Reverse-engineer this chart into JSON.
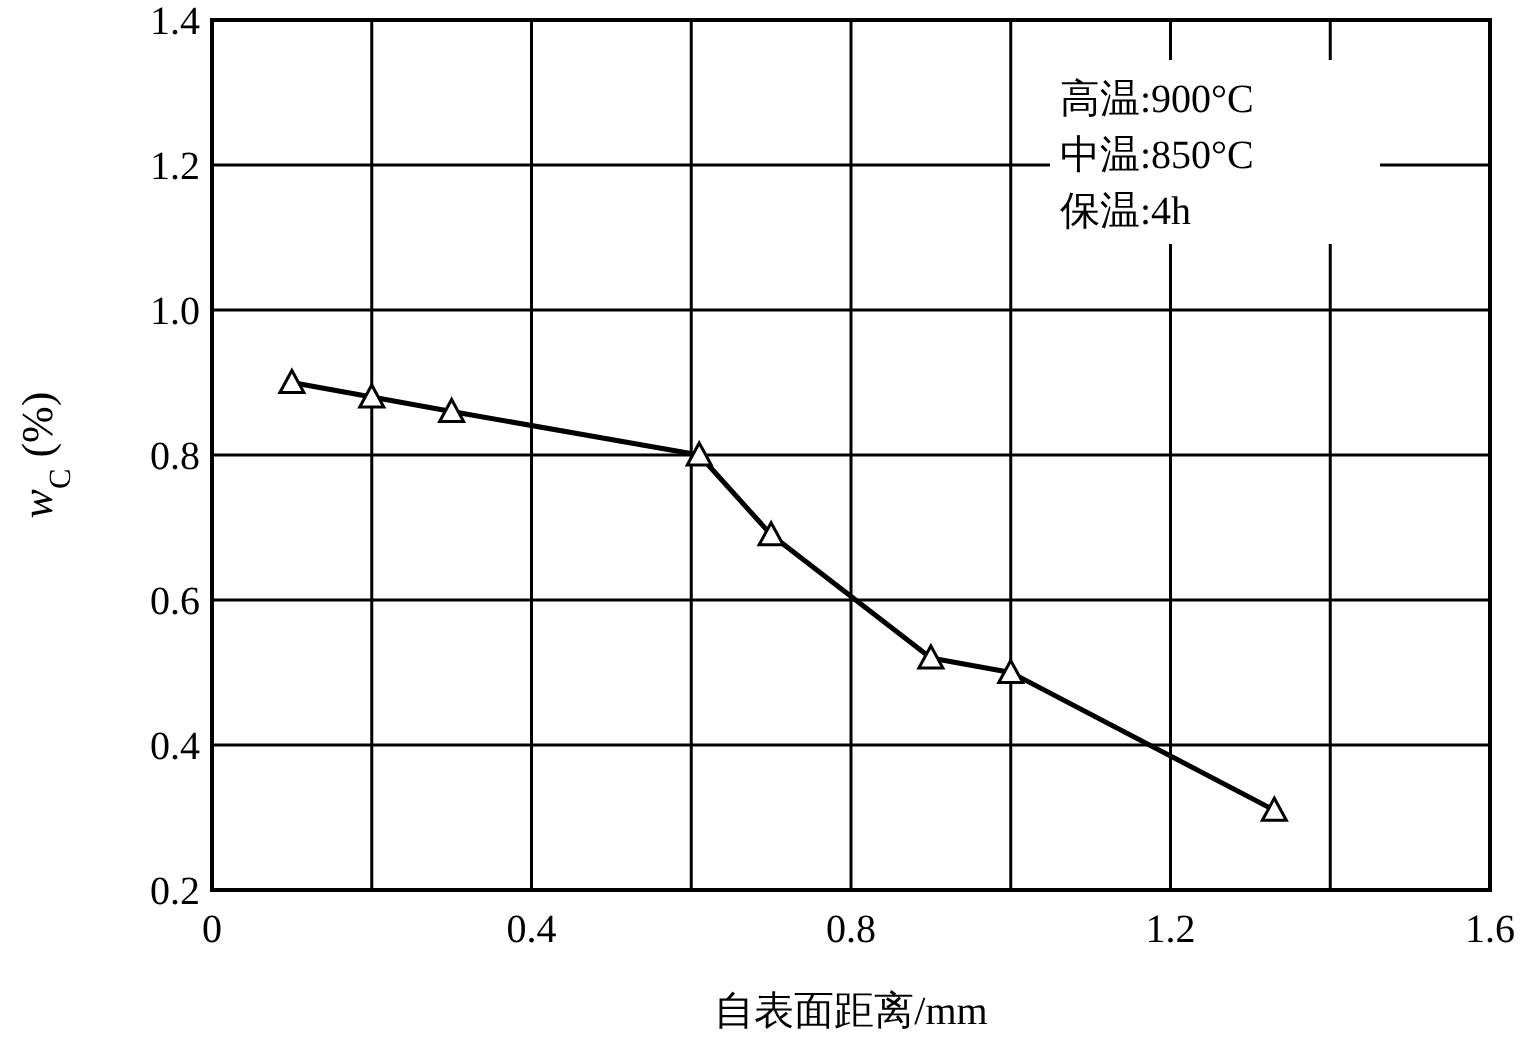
{
  "chart_data": {
    "type": "line",
    "xlabel": "自表面距离/mm",
    "ylabel": "*w*$_{C}$ (%)",
    "x": [
      0.1,
      0.2,
      0.3,
      0.61,
      0.7,
      0.9,
      1.0,
      1.33
    ],
    "values": [
      0.9,
      0.88,
      0.86,
      0.8,
      0.69,
      0.52,
      0.5,
      0.31
    ],
    "color": "#000000",
    "marker": "triangle",
    "line_style": "solid",
    "grid": true,
    "xlim": [
      0,
      1.6
    ],
    "ylim": [
      0.2,
      1.4
    ],
    "xticks": [
      0,
      {
        "value": 0.2,
        "label": null
      },
      0.4,
      {
        "value": 0.6,
        "label": null
      },
      0.8,
      {
        "value": 1.0,
        "label": null
      },
      1.2,
      {
        "value": 1.4,
        "label": null
      },
      1.6
    ],
    "yticks": [
      0.2,
      0.4,
      0.6,
      0.8,
      {
        "value": 1.0,
        "label": "1.0"
      },
      1.2,
      1.4
    ],
    "annotations": [
      "高温:900°C",
      "中温:850°C",
      "保温:4h"
    ]
  }
}
